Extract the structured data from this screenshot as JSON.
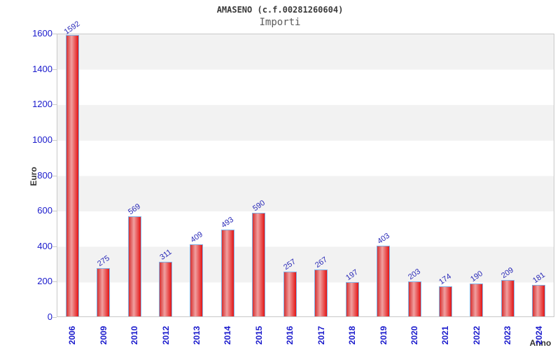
{
  "header": {
    "title": "AMASENO (c.f.00281260604)",
    "subtitle": "Importi"
  },
  "chart_data": {
    "type": "bar",
    "title": "AMASENO (c.f.00281260604)",
    "subtitle": "Importi",
    "categories": [
      "2006",
      "2009",
      "2010",
      "2012",
      "2013",
      "2014",
      "2015",
      "2016",
      "2017",
      "2018",
      "2019",
      "2020",
      "2021",
      "2022",
      "2023",
      "2024"
    ],
    "values": [
      1592,
      275,
      569,
      311,
      409,
      493,
      590,
      257,
      267,
      197,
      403,
      203,
      174,
      190,
      209,
      181
    ],
    "xlabel": "Anno",
    "ylabel": "Euro",
    "ylim": [
      0,
      1600
    ],
    "ytick_step": 200,
    "ytick_labels": [
      "0",
      "200",
      "400",
      "600",
      "800",
      "1000",
      "1200",
      "1400",
      "1600"
    ],
    "grid": "alternating-horizontal-bands",
    "legend": "none",
    "bar_value_labels_shown": true
  },
  "style": {
    "bar_gradient_left": "#d63030",
    "bar_gradient_mid": "#f0a0a0",
    "bar_gradient_right": "#e31414",
    "bar_border": "#82b2e6",
    "tick_label_color": "#1a1acc",
    "value_label_color": "#2a2ab8",
    "band_gray": "#f2f2f2",
    "band_white": "#ffffff",
    "plot_border": "#c9c9c9",
    "tick_mark_color": "#c9c9c9",
    "title_color": "#3a3a3a",
    "subtitle_color": "#5a5a5a",
    "axis_title_color": "#333333"
  }
}
